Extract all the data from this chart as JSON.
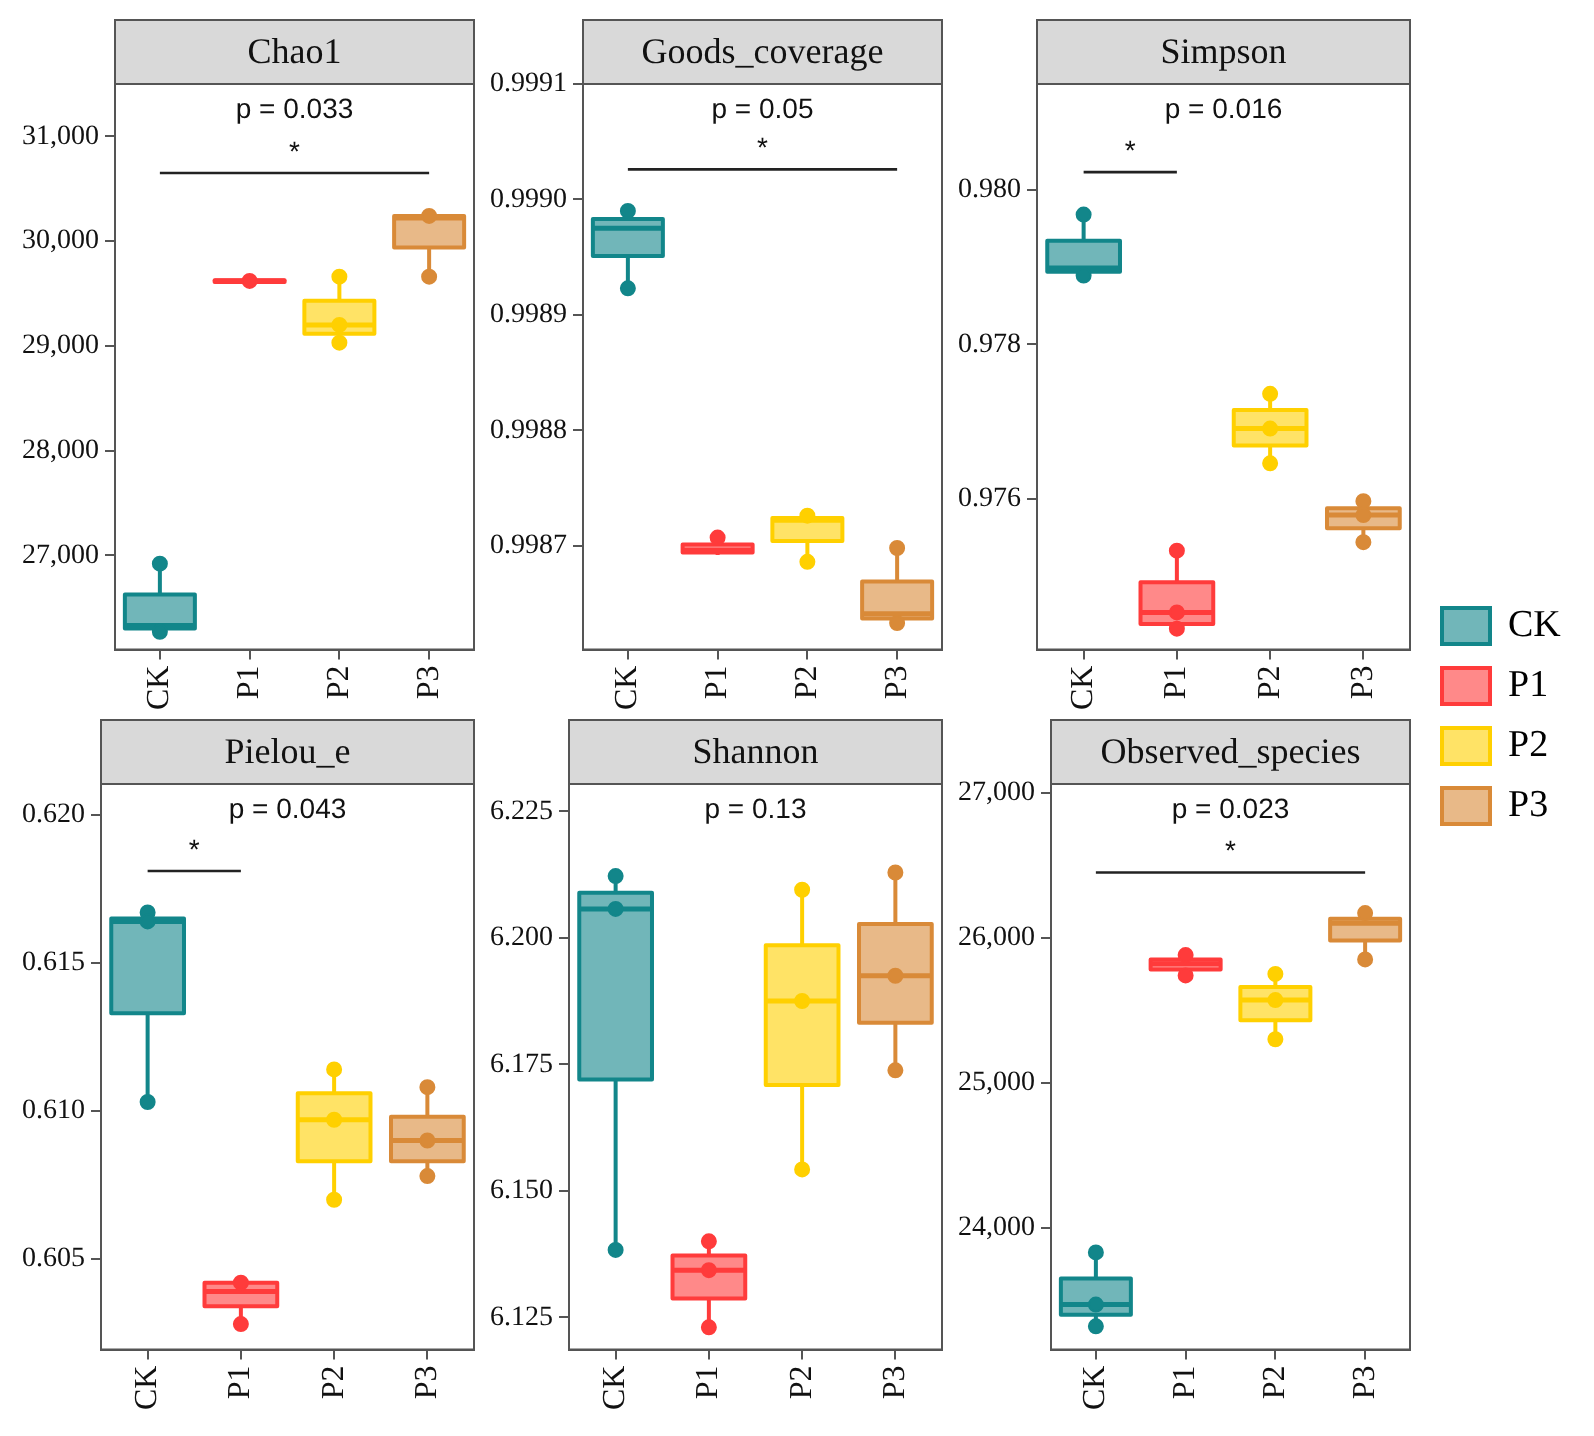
{
  "chart_data": [
    {
      "type": "box",
      "title": "Chao1",
      "categories": [
        "CK",
        "P1",
        "P2",
        "P3"
      ],
      "ylim": [
        26100,
        31500
      ],
      "yticks": [
        {
          "value": 27000,
          "label": "27,000"
        },
        {
          "value": 28000,
          "label": "28,000"
        },
        {
          "value": 29000,
          "label": "29,000"
        },
        {
          "value": 30000,
          "label": "30,000"
        },
        {
          "value": 31000,
          "label": "31,000"
        }
      ],
      "grid": false,
      "marker": "circle",
      "legend": "right",
      "annotations": [
        "p = 0.033",
        "*"
      ],
      "series": [
        {
          "name": "CK",
          "color": "#12868a",
          "boxes": [
            {
              "low": 26270,
              "q1": 26300,
              "median": 26330,
              "q3": 26625,
              "high": 26920
            },
            null,
            null,
            null
          ]
        },
        {
          "name": "P1",
          "color": "#ff3b3b",
          "boxes": [
            null,
            {
              "low": 29600,
              "q1": 29610,
              "median": 29620,
              "q3": 29625,
              "high": 29630
            },
            null,
            null
          ]
        },
        {
          "name": "P2",
          "color": "#ffd000",
          "boxes": [
            null,
            null,
            {
              "low": 29030,
              "q1": 29115,
              "median": 29200,
              "q3": 29430,
              "high": 29660
            },
            null
          ]
        },
        {
          "name": "P3",
          "color": "#d98a38",
          "boxes": [
            null,
            null,
            null,
            {
              "low": 29660,
              "q1": 29940,
              "median": 30220,
              "q3": 30240,
              "high": 30260
            }
          ]
        },
        {
          "type": "scatter",
          "color": "#12868a",
          "x": [
            "CK",
            "CK"
          ],
          "values": [
            26920,
            26270
          ]
        },
        {
          "type": "scatter",
          "color": "#ff3b3b",
          "x": [
            "P1"
          ],
          "values": [
            29620
          ]
        },
        {
          "type": "scatter",
          "color": "#ffd000",
          "x": [
            "P2",
            "P2",
            "P2"
          ],
          "values": [
            29660,
            29200,
            29030
          ]
        },
        {
          "type": "scatter",
          "color": "#d98a38",
          "x": [
            "P3",
            "P3"
          ],
          "values": [
            30240,
            29660
          ]
        },
        {
          "type": "line",
          "marker": "none",
          "color": "#222222",
          "x": [
            "CK",
            "P3"
          ],
          "values": [
            30650,
            30650
          ]
        }
      ]
    },
    {
      "type": "box",
      "title": "Goods_coverage",
      "categories": [
        "CK",
        "P1",
        "P2",
        "P3"
      ],
      "ylim": [
        0.99861,
        0.9991
      ],
      "yticks": [
        {
          "value": 0.9987,
          "label": "0.9987"
        },
        {
          "value": 0.9988,
          "label": "0.9988"
        },
        {
          "value": 0.9989,
          "label": "0.9989"
        },
        {
          "value": 0.999,
          "label": "0.9990"
        },
        {
          "value": 0.9991,
          "label": "0.9991"
        }
      ],
      "grid": false,
      "marker": "circle",
      "annotations": [
        "p = 0.05",
        "*"
      ],
      "series": [
        {
          "name": "CK",
          "color": "#12868a",
          "boxes": [
            {
              "low": 0.998923,
              "q1": 0.998951,
              "median": 0.998975,
              "q3": 0.998983,
              "high": 0.99899
            },
            null,
            null,
            null
          ]
        },
        {
          "name": "P1",
          "color": "#ff3b3b",
          "boxes": [
            null,
            {
              "low": 0.998692,
              "q1": 0.998694,
              "median": 0.998696,
              "q3": 0.998701,
              "high": 0.998707
            },
            null,
            null
          ]
        },
        {
          "name": "P2",
          "color": "#ffd000",
          "boxes": [
            null,
            null,
            {
              "low": 0.998686,
              "q1": 0.998704,
              "median": 0.998722,
              "q3": 0.998724,
              "high": 0.998726
            },
            null
          ]
        },
        {
          "name": "P3",
          "color": "#d98a38",
          "boxes": [
            null,
            null,
            null,
            {
              "low": 0.998633,
              "q1": 0.998637,
              "median": 0.998641,
              "q3": 0.998669,
              "high": 0.998698
            }
          ]
        },
        {
          "type": "scatter",
          "color": "#12868a",
          "x": [
            "CK",
            "CK"
          ],
          "values": [
            0.99899,
            0.998923
          ]
        },
        {
          "type": "scatter",
          "color": "#ff3b3b",
          "x": [
            "P1"
          ],
          "values": [
            0.998707
          ]
        },
        {
          "type": "scatter",
          "color": "#ffd000",
          "x": [
            "P2",
            "P2"
          ],
          "values": [
            0.998726,
            0.998686
          ]
        },
        {
          "type": "scatter",
          "color": "#d98a38",
          "x": [
            "P3",
            "P3"
          ],
          "values": [
            0.998698,
            0.998633
          ]
        },
        {
          "type": "line",
          "marker": "none",
          "color": "#222222",
          "x": [
            "CK",
            "P3"
          ],
          "values": [
            0.999026,
            0.999026
          ]
        }
      ]
    },
    {
      "type": "box",
      "title": "Simpson",
      "categories": [
        "CK",
        "P1",
        "P2",
        "P3"
      ],
      "ylim": [
        0.97405,
        0.98137
      ],
      "yticks": [
        {
          "value": 0.976,
          "label": "0.976"
        },
        {
          "value": 0.978,
          "label": "0.978"
        },
        {
          "value": 0.98,
          "label": "0.980"
        }
      ],
      "grid": false,
      "marker": "circle",
      "annotations": [
        "p = 0.016",
        "*"
      ],
      "series": [
        {
          "name": "CK",
          "color": "#12868a",
          "boxes": [
            {
              "low": 0.97889,
              "q1": 0.97894,
              "median": 0.97899,
              "q3": 0.97934,
              "high": 0.97968
            },
            null,
            null,
            null
          ]
        },
        {
          "name": "P1",
          "color": "#ff3b3b",
          "boxes": [
            null,
            {
              "low": 0.97432,
              "q1": 0.97438,
              "median": 0.97453,
              "q3": 0.97492,
              "high": 0.97533
            },
            null,
            null
          ]
        },
        {
          "name": "P2",
          "color": "#ffd000",
          "boxes": [
            null,
            null,
            {
              "low": 0.97646,
              "q1": 0.97669,
              "median": 0.97691,
              "q3": 0.97715,
              "high": 0.97736
            },
            null
          ]
        },
        {
          "name": "P3",
          "color": "#d98a38",
          "boxes": [
            null,
            null,
            null,
            {
              "low": 0.97544,
              "q1": 0.97562,
              "median": 0.97579,
              "q3": 0.97588,
              "high": 0.97597
            }
          ]
        },
        {
          "type": "scatter",
          "color": "#12868a",
          "x": [
            "CK",
            "CK"
          ],
          "values": [
            0.97968,
            0.97889
          ]
        },
        {
          "type": "scatter",
          "color": "#ff3b3b",
          "x": [
            "P1",
            "P1",
            "P1"
          ],
          "values": [
            0.97533,
            0.97453,
            0.97432
          ]
        },
        {
          "type": "scatter",
          "color": "#ffd000",
          "x": [
            "P2",
            "P2",
            "P2"
          ],
          "values": [
            0.97736,
            0.97691,
            0.97646
          ]
        },
        {
          "type": "scatter",
          "color": "#d98a38",
          "x": [
            "P3",
            "P3",
            "P3"
          ],
          "values": [
            0.97597,
            0.97579,
            0.97544
          ]
        },
        {
          "type": "line",
          "marker": "none",
          "color": "#222222",
          "x": [
            "CK",
            "P1"
          ],
          "values": [
            0.98023,
            0.98023
          ]
        }
      ]
    },
    {
      "type": "box",
      "title": "Pielou_e",
      "categories": [
        "CK",
        "P1",
        "P2",
        "P3"
      ],
      "ylim": [
        0.60194,
        0.62104
      ],
      "yticks": [
        {
          "value": 0.605,
          "label": "0.605"
        },
        {
          "value": 0.61,
          "label": "0.610"
        },
        {
          "value": 0.615,
          "label": "0.615"
        },
        {
          "value": 0.62,
          "label": "0.620"
        }
      ],
      "grid": false,
      "marker": "circle",
      "annotations": [
        "p = 0.043",
        "*"
      ],
      "series": [
        {
          "name": "CK",
          "color": "#12868a",
          "boxes": [
            {
              "low": 0.6103,
              "q1": 0.6133,
              "median": 0.6164,
              "q3": 0.6165,
              "high": 0.6167
            },
            null,
            null,
            null
          ]
        },
        {
          "name": "P1",
          "color": "#ff3b3b",
          "boxes": [
            null,
            {
              "low": 0.6028,
              "q1": 0.6034,
              "median": 0.6039,
              "q3": 0.6042,
              "high": 0.6042
            },
            null,
            null
          ]
        },
        {
          "name": "P2",
          "color": "#ffd000",
          "boxes": [
            null,
            null,
            {
              "low": 0.607,
              "q1": 0.6083,
              "median": 0.6097,
              "q3": 0.6106,
              "high": 0.6114
            },
            null
          ]
        },
        {
          "name": "P3",
          "color": "#d98a38",
          "boxes": [
            null,
            null,
            null,
            {
              "low": 0.6078,
              "q1": 0.6083,
              "median": 0.609,
              "q3": 0.6098,
              "high": 0.6108
            }
          ]
        },
        {
          "type": "scatter",
          "color": "#12868a",
          "x": [
            "CK",
            "CK",
            "CK"
          ],
          "values": [
            0.6167,
            0.6164,
            0.6103
          ]
        },
        {
          "type": "scatter",
          "color": "#ff3b3b",
          "x": [
            "P1",
            "P1"
          ],
          "values": [
            0.6042,
            0.6028
          ]
        },
        {
          "type": "scatter",
          "color": "#ffd000",
          "x": [
            "P2",
            "P2",
            "P2"
          ],
          "values": [
            0.6114,
            0.6097,
            0.607
          ]
        },
        {
          "type": "scatter",
          "color": "#d98a38",
          "x": [
            "P3",
            "P3",
            "P3"
          ],
          "values": [
            0.6108,
            0.609,
            0.6078
          ]
        },
        {
          "type": "line",
          "marker": "none",
          "color": "#222222",
          "x": [
            "CK",
            "P1"
          ],
          "values": [
            0.6181,
            0.6181
          ]
        }
      ]
    },
    {
      "type": "box",
      "title": "Shannon",
      "categories": [
        "CK",
        "P1",
        "P2",
        "P3"
      ],
      "ylim": [
        6.1186,
        6.2304
      ],
      "yticks": [
        6.125,
        {
          "value": 6.15,
          "label": "6.150"
        },
        6.175,
        {
          "value": 6.2,
          "label": "6.200"
        },
        6.225
      ],
      "grid": false,
      "marker": "circle",
      "annotations": [
        "p = 0.13"
      ],
      "series": [
        {
          "name": "CK",
          "color": "#12868a",
          "boxes": [
            {
              "low": 6.1383,
              "q1": 6.172,
              "median": 6.2057,
              "q3": 6.2089,
              "high": 6.2122
            },
            null,
            null,
            null
          ]
        },
        {
          "name": "P1",
          "color": "#ff3b3b",
          "boxes": [
            null,
            {
              "low": 6.123,
              "q1": 6.1287,
              "median": 6.1343,
              "q3": 6.1372,
              "high": 6.14
            },
            null,
            null
          ]
        },
        {
          "name": "P2",
          "color": "#ffd000",
          "boxes": [
            null,
            null,
            {
              "low": 6.1542,
              "q1": 6.1709,
              "median": 6.1875,
              "q3": 6.1985,
              "high": 6.2095
            },
            null
          ]
        },
        {
          "name": "P3",
          "color": "#d98a38",
          "boxes": [
            null,
            null,
            null,
            {
              "low": 6.1738,
              "q1": 6.1832,
              "median": 6.1925,
              "q3": 6.2027,
              "high": 6.2129
            }
          ]
        },
        {
          "type": "scatter",
          "color": "#12868a",
          "x": [
            "CK",
            "CK",
            "CK"
          ],
          "values": [
            6.2122,
            6.2057,
            6.1383
          ]
        },
        {
          "type": "scatter",
          "color": "#ff3b3b",
          "x": [
            "P1",
            "P1",
            "P1"
          ],
          "values": [
            6.14,
            6.1343,
            6.123
          ]
        },
        {
          "type": "scatter",
          "color": "#ffd000",
          "x": [
            "P2",
            "P2",
            "P2"
          ],
          "values": [
            6.2095,
            6.1875,
            6.1542
          ]
        },
        {
          "type": "scatter",
          "color": "#d98a38",
          "x": [
            "P3",
            "P3",
            "P3"
          ],
          "values": [
            6.2129,
            6.1925,
            6.1738
          ]
        }
      ]
    },
    {
      "type": "box",
      "title": "Observed_species",
      "categories": [
        "CK",
        "P1",
        "P2",
        "P3"
      ],
      "ylim": [
        23160,
        27060
      ],
      "yticks": [
        {
          "value": 24000,
          "label": "24,000"
        },
        {
          "value": 25000,
          "label": "25,000"
        },
        {
          "value": 26000,
          "label": "26,000"
        },
        {
          "value": 27000,
          "label": "27,000"
        }
      ],
      "grid": false,
      "marker": "circle",
      "annotations": [
        "p = 0.023",
        "*"
      ],
      "series": [
        {
          "name": "CK",
          "color": "#12868a",
          "boxes": [
            {
              "low": 23320,
              "q1": 23400,
              "median": 23470,
              "q3": 23650,
              "high": 23830
            },
            null,
            null,
            null
          ]
        },
        {
          "name": "P1",
          "color": "#ff3b3b",
          "boxes": [
            null,
            {
              "low": 25740,
              "q1": 25780,
              "median": 25820,
              "q3": 25850,
              "high": 25880
            },
            null,
            null
          ]
        },
        {
          "name": "P2",
          "color": "#ffd000",
          "boxes": [
            null,
            null,
            {
              "low": 25300,
              "q1": 25430,
              "median": 25570,
              "q3": 25660,
              "high": 25750
            },
            null
          ]
        },
        {
          "name": "P3",
          "color": "#d98a38",
          "boxes": [
            null,
            null,
            null,
            {
              "low": 25850,
              "q1": 25980,
              "median": 26100,
              "q3": 26130,
              "high": 26170
            }
          ]
        },
        {
          "type": "scatter",
          "color": "#12868a",
          "x": [
            "CK",
            "CK",
            "CK"
          ],
          "values": [
            23830,
            23470,
            23320
          ]
        },
        {
          "type": "scatter",
          "color": "#ff3b3b",
          "x": [
            "P1",
            "P1"
          ],
          "values": [
            25880,
            25740
          ]
        },
        {
          "type": "scatter",
          "color": "#ffd000",
          "x": [
            "P2",
            "P2",
            "P2"
          ],
          "values": [
            25750,
            25570,
            25300
          ]
        },
        {
          "type": "scatter",
          "color": "#d98a38",
          "x": [
            "P3",
            "P3"
          ],
          "values": [
            26170,
            25850
          ]
        },
        {
          "type": "line",
          "marker": "none",
          "color": "#222222",
          "x": [
            "CK",
            "P3"
          ],
          "values": [
            26450,
            26450
          ]
        }
      ]
    }
  ]
}
